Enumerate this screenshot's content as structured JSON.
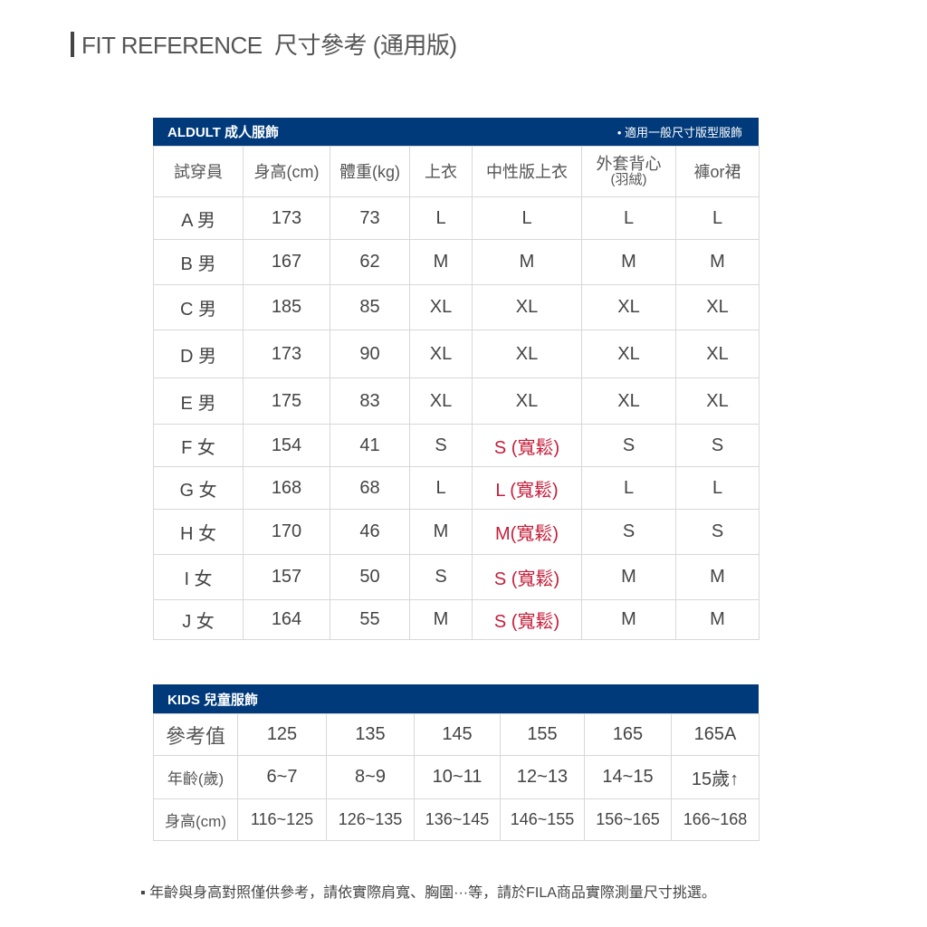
{
  "title": {
    "text": "FIT REFERENCE  尺寸參考 (通用版)"
  },
  "adult": {
    "band_title": "ALDULT 成人服飾",
    "band_note": "• 適用一般尺寸版型服飾",
    "headers": [
      "試穿員",
      "身高(cm)",
      "體重(kg)",
      "上衣",
      "中性版上衣",
      "外套背心",
      "(羽絨)",
      "褲or裙"
    ],
    "rows": [
      [
        "A 男",
        "173",
        "73",
        "L",
        "L",
        "L",
        "L"
      ],
      [
        "B 男",
        "167",
        "62",
        "M",
        "M",
        "M",
        "M"
      ],
      [
        "C 男",
        "185",
        "85",
        "XL",
        "XL",
        "XL",
        "XL"
      ],
      [
        "D 男",
        "173",
        "90",
        "XL",
        "XL",
        "XL",
        "XL"
      ],
      [
        "E 男",
        "175",
        "83",
        "XL",
        "XL",
        "XL",
        "XL"
      ],
      [
        "F 女",
        "154",
        "41",
        "S",
        "S (寬鬆)",
        "S",
        "S"
      ],
      [
        "G 女",
        "168",
        "68",
        "L",
        "L (寬鬆)",
        "L",
        "L"
      ],
      [
        "H 女",
        "170",
        "46",
        "M",
        "M(寬鬆)",
        "S",
        "S"
      ],
      [
        "I 女",
        "157",
        "50",
        "S",
        "S (寬鬆)",
        "M",
        "M"
      ],
      [
        "J 女",
        "164",
        "55",
        "M",
        "S (寬鬆)",
        "M",
        "M"
      ]
    ],
    "highlight_color": "#c41e3a"
  },
  "kids": {
    "band_title": "KIDS 兒童服飾",
    "rows": [
      [
        "參考值",
        "125",
        "135",
        "145",
        "155",
        "165",
        "165A"
      ],
      [
        "年齡(歲)",
        "6~7",
        "8~9",
        "10~11",
        "12~13",
        "14~15",
        "15歲↑"
      ],
      [
        "身高(cm)",
        "116~125",
        "126~135",
        "136~145",
        "146~155",
        "156~165",
        "166~168"
      ]
    ]
  },
  "footnote": "▪ 年齡與身高對照僅供參考，請依實際肩寬、胸圍···等，請於FILA商品實際測量尺寸挑選。",
  "colors": {
    "band": "#013a7a",
    "text": "#444444"
  }
}
